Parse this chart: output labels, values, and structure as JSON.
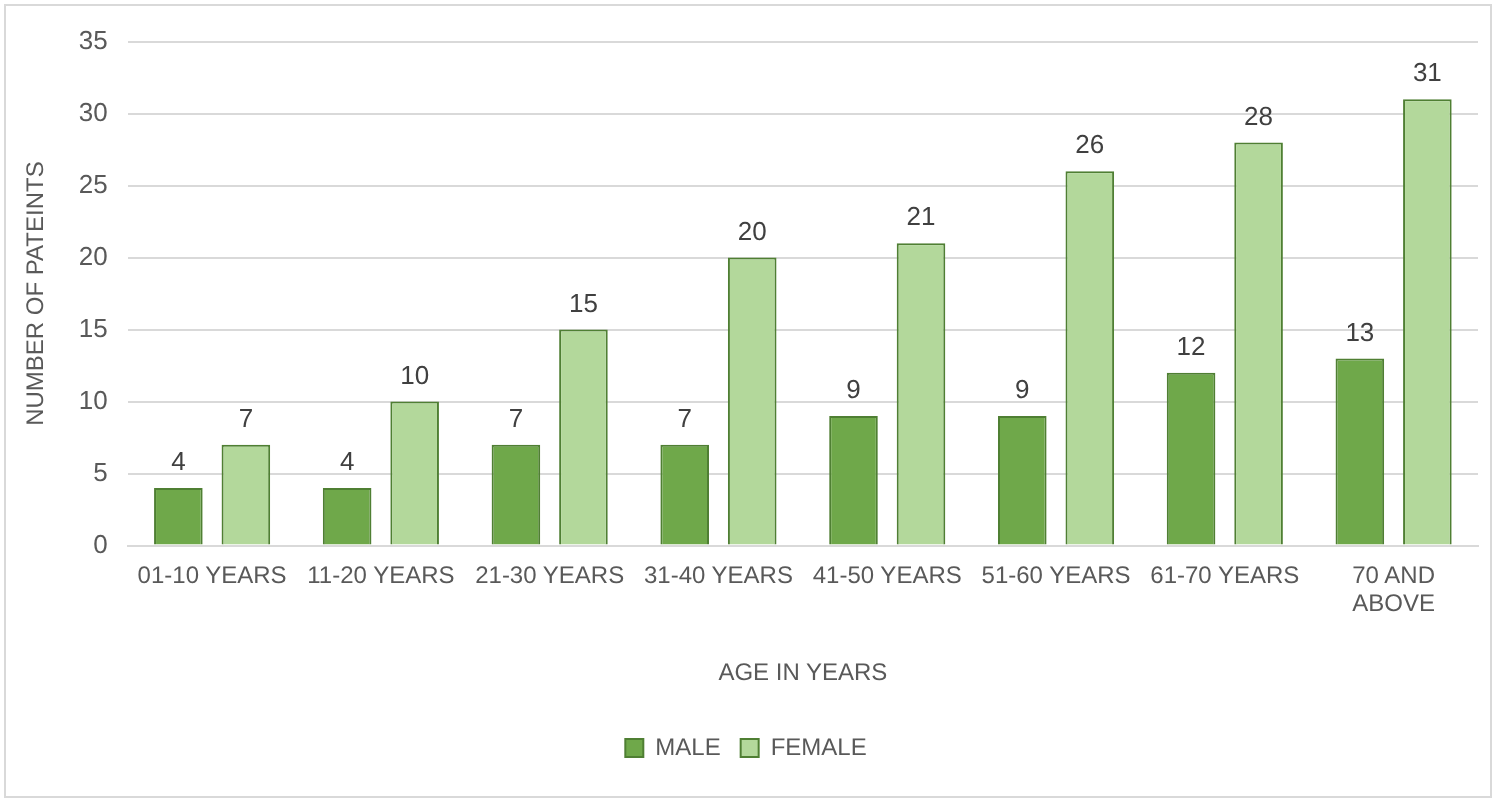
{
  "chart_data": {
    "type": "bar",
    "xlabel": "AGE IN YEARS",
    "ylabel": "NUMBER OF PATEINTS",
    "categories": [
      "01-10 YEARS",
      "11-20 YEARS",
      "21-30 YEARS",
      "31-40 YEARS",
      "41-50 YEARS",
      "51-60 YEARS",
      "61-70 YEARS",
      "70 AND ABOVE"
    ],
    "series": [
      {
        "name": "MALE",
        "color": "#6fa84a",
        "values": [
          4,
          4,
          7,
          7,
          9,
          9,
          12,
          13
        ]
      },
      {
        "name": "FEMALE",
        "color": "#b3d89b",
        "values": [
          7,
          10,
          15,
          20,
          21,
          26,
          28,
          31
        ]
      }
    ],
    "ylim": [
      0,
      35
    ],
    "yticks": [
      0,
      5,
      10,
      15,
      20,
      25,
      30,
      35
    ],
    "grid": "y",
    "legend": "bottom",
    "data_labels": true
  }
}
